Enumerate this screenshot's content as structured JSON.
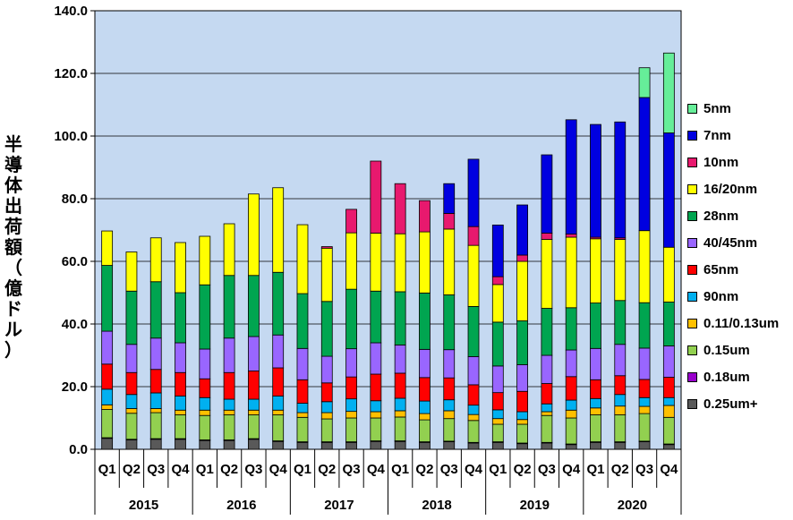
{
  "chart_data": {
    "type": "bar",
    "stacked": true,
    "ylabel": "半導体出荷額（億ドル）",
    "ylim": [
      0,
      140
    ],
    "ytick_step": 20,
    "ytick_labels": [
      "0.0",
      "20.0",
      "40.0",
      "60.0",
      "80.0",
      "100.0",
      "120.0",
      "140.0"
    ],
    "background": "#c5d9f1",
    "legend_position": "right",
    "categories": [
      "Q1",
      "Q2",
      "Q3",
      "Q4",
      "Q1",
      "Q2",
      "Q3",
      "Q4",
      "Q1",
      "Q2",
      "Q3",
      "Q4",
      "Q1",
      "Q2",
      "Q3",
      "Q4",
      "Q1",
      "Q2",
      "Q3",
      "Q4",
      "Q1",
      "Q2",
      "Q3",
      "Q4"
    ],
    "years": [
      "2015",
      "2016",
      "2017",
      "2018",
      "2019",
      "2020"
    ],
    "series": [
      {
        "name": "0.25um+",
        "color": "#595959",
        "values": [
          3.5,
          3,
          3.2,
          3.2,
          2.8,
          2.8,
          3.2,
          2.5,
          2.2,
          2.2,
          2.2,
          2.5,
          2.5,
          2.2,
          2.4,
          2,
          2.2,
          1.8,
          2,
          1.5,
          2.2,
          2.2,
          2.4,
          1.5
        ]
      },
      {
        "name": "0.18um",
        "color": "#9900cc",
        "values": [
          0.2,
          0.2,
          0.2,
          0.2,
          0.2,
          0.2,
          0.2,
          0.2,
          0.2,
          0.2,
          0.2,
          0.2,
          0.2,
          0.2,
          0.2,
          0.2,
          0.2,
          0.2,
          0.2,
          0.2,
          0.2,
          0.2,
          0.2,
          0.2
        ]
      },
      {
        "name": "0.15um",
        "color": "#92d050",
        "values": [
          9,
          8.3,
          8.3,
          7.6,
          7.8,
          8,
          7.6,
          8.3,
          7.8,
          7.3,
          7.6,
          7.3,
          7.6,
          7,
          7.2,
          7,
          5.6,
          6,
          8.6,
          8.3,
          8.6,
          8.6,
          8.8,
          8.5
        ]
      },
      {
        "name": "0.11/0.13um",
        "color": "#ffc000",
        "values": [
          1.5,
          1.5,
          1.3,
          1.5,
          1.7,
          1.5,
          1.5,
          1.5,
          1.5,
          2,
          2.1,
          2,
          2,
          2,
          2.5,
          1.9,
          1.8,
          1.5,
          1.2,
          2.5,
          2.2,
          2.8,
          2.3,
          3.8
        ]
      },
      {
        "name": "90nm",
        "color": "#00b0f0",
        "values": [
          5,
          4.5,
          5,
          4.5,
          4,
          3.5,
          3.5,
          4.5,
          3,
          3.5,
          4,
          3.5,
          4,
          4,
          3.5,
          3,
          2.8,
          2.5,
          2.5,
          3.2,
          3,
          3.7,
          2.8,
          2.5
        ]
      },
      {
        "name": "65nm",
        "color": "#ff0000",
        "values": [
          8,
          7,
          7.5,
          7.5,
          6,
          8.5,
          9,
          9,
          7.5,
          6,
          7,
          8.5,
          8,
          7.5,
          7,
          6.5,
          5.5,
          6.5,
          6.5,
          7.5,
          6,
          6,
          5.8,
          6.5
        ]
      },
      {
        "name": "40/45nm",
        "color": "#9966ff",
        "values": [
          10.5,
          9,
          10,
          9.5,
          9.5,
          11,
          11,
          10.5,
          10,
          8.5,
          9,
          10,
          9,
          9,
          9,
          9,
          8.5,
          8.5,
          9,
          8.5,
          10,
          10,
          10,
          10
        ]
      },
      {
        "name": "28nm",
        "color": "#00a550",
        "values": [
          21,
          17,
          18,
          16,
          20.5,
          20,
          19.5,
          20,
          17.5,
          17.5,
          19,
          16.5,
          17,
          18,
          17.5,
          16,
          14,
          14,
          15,
          13.5,
          14.5,
          14,
          14.5,
          14
        ]
      },
      {
        "name": "16/20nm",
        "color": "#ffff00",
        "values": [
          11,
          12.5,
          14,
          16,
          15.5,
          16.5,
          26,
          27,
          22,
          17,
          18,
          18.5,
          18.5,
          19.5,
          21,
          19.5,
          12,
          19,
          22,
          22.5,
          20.5,
          19.5,
          23,
          17.5
        ]
      },
      {
        "name": "10nm",
        "color": "#e8196e",
        "values": [
          0,
          0,
          0,
          0,
          0,
          0,
          0,
          0,
          0,
          0.5,
          7.5,
          23,
          16,
          10,
          5,
          6,
          2.5,
          2,
          2,
          1,
          0.5,
          0.5,
          0,
          0
        ]
      },
      {
        "name": "7nm",
        "color": "#0000e0",
        "values": [
          0,
          0,
          0,
          0,
          0,
          0,
          0,
          0,
          0,
          0,
          0,
          0,
          0,
          0,
          9.5,
          21.5,
          16.5,
          16,
          25,
          36.5,
          36,
          37,
          42.5,
          36.5
        ]
      },
      {
        "name": "5nm",
        "color": "#66ee99",
        "values": [
          0,
          0,
          0,
          0,
          0,
          0,
          0,
          0,
          0,
          0,
          0,
          0,
          0,
          0,
          0,
          0,
          0,
          0,
          0,
          0,
          0,
          0,
          9.5,
          25.5
        ]
      }
    ]
  }
}
